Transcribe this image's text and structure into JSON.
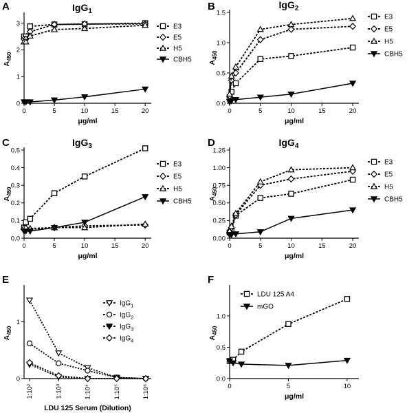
{
  "chart_data": [
    {
      "letter": "A",
      "type": "line",
      "title": "IgG",
      "title_sub": "1",
      "xlabel": "μg/ml",
      "ylabel": "A",
      "ylabel_sub": "450",
      "xlim": [
        0,
        21
      ],
      "xticks": [
        "0",
        "5",
        "10",
        "15",
        "20"
      ],
      "xtick_values": [
        0,
        5,
        10,
        15,
        20
      ],
      "ylim": [
        0,
        3.3
      ],
      "yticks": [
        "0",
        "1",
        "2",
        "3"
      ],
      "ytick_values": [
        0,
        1,
        2,
        3
      ],
      "legend": "top-right",
      "grid": false,
      "x": [
        0,
        0.3,
        1,
        5,
        10,
        20
      ],
      "series": [
        {
          "name": "E3",
          "marker": "square",
          "dashed": true,
          "values": [
            2.5,
            2.5,
            2.88,
            2.95,
            2.96,
            3.0
          ]
        },
        {
          "name": "E5",
          "marker": "diamond",
          "dashed": true,
          "values": [
            2.4,
            2.4,
            2.68,
            2.95,
            2.97,
            2.97
          ]
        },
        {
          "name": "H5",
          "marker": "triangle-up",
          "dashed": true,
          "values": [
            2.3,
            2.3,
            2.52,
            2.76,
            2.8,
            2.92
          ]
        },
        {
          "name": "CBH5",
          "marker": "triangle-down",
          "dashed": false,
          "values": [
            0.05,
            0.05,
            0.05,
            0.12,
            0.24,
            0.53
          ]
        }
      ]
    },
    {
      "letter": "B",
      "type": "line",
      "title": "IgG",
      "title_sub": "2",
      "xlabel": "μg/ml",
      "ylabel": "A",
      "ylabel_sub": "450",
      "xlim": [
        0,
        21
      ],
      "xticks": [
        "0",
        "5",
        "10",
        "15",
        "20"
      ],
      "xtick_values": [
        0,
        5,
        10,
        15,
        20
      ],
      "ylim": [
        0,
        1.5
      ],
      "yticks": [
        "0.0",
        "0.5",
        "1.0",
        "1.5"
      ],
      "ytick_values": [
        0,
        0.5,
        1.0,
        1.5
      ],
      "legend": "top-right",
      "grid": false,
      "x": [
        0,
        0.3,
        1,
        5,
        10,
        20
      ],
      "series": [
        {
          "name": "E3",
          "marker": "square",
          "dashed": true,
          "values": [
            0.1,
            0.19,
            0.33,
            0.73,
            0.78,
            0.92
          ]
        },
        {
          "name": "E5",
          "marker": "diamond",
          "dashed": true,
          "values": [
            0.12,
            0.38,
            0.5,
            1.05,
            1.22,
            1.27
          ]
        },
        {
          "name": "H5",
          "marker": "triangle-up",
          "dashed": true,
          "values": [
            0.15,
            0.45,
            0.6,
            1.22,
            1.3,
            1.4
          ]
        },
        {
          "name": "CBH5",
          "marker": "triangle-down",
          "dashed": false,
          "values": [
            0.02,
            0.04,
            0.06,
            0.1,
            0.15,
            0.33
          ]
        }
      ]
    },
    {
      "letter": "C",
      "type": "line",
      "title": "IgG",
      "title_sub": "3",
      "xlabel": "μg/ml",
      "ylabel": "A",
      "ylabel_sub": "450",
      "xlim": [
        0,
        21
      ],
      "xticks": [
        "0",
        "5",
        "10",
        "15",
        "20"
      ],
      "xtick_values": [
        0,
        5,
        10,
        15,
        20
      ],
      "ylim": [
        0,
        0.5
      ],
      "yticks": [
        "0.0",
        "0.1",
        "0.2",
        "0.3",
        "0.4",
        "0.5"
      ],
      "ytick_values": [
        0,
        0.1,
        0.2,
        0.3,
        0.4,
        0.5
      ],
      "legend": "top-right",
      "grid": false,
      "x": [
        0,
        0.3,
        1,
        5,
        10,
        20
      ],
      "series": [
        {
          "name": "E3",
          "marker": "square",
          "dashed": true,
          "values": [
            0.06,
            0.09,
            0.11,
            0.255,
            0.35,
            0.51
          ]
        },
        {
          "name": "E5",
          "marker": "diamond",
          "dashed": true,
          "values": [
            0.05,
            0.05,
            0.05,
            0.06,
            0.07,
            0.075
          ]
        },
        {
          "name": "H5",
          "marker": "triangle-up",
          "dashed": true,
          "values": [
            0.06,
            0.06,
            0.055,
            0.06,
            0.06,
            0.08
          ]
        },
        {
          "name": "CBH5",
          "marker": "triangle-down",
          "dashed": false,
          "values": [
            0.04,
            0.04,
            0.04,
            0.06,
            0.09,
            0.235
          ]
        }
      ]
    },
    {
      "letter": "D",
      "type": "line",
      "title": "IgG",
      "title_sub": "4",
      "xlabel": "μg/ml",
      "ylabel": "A",
      "ylabel_sub": "450",
      "xlim": [
        0,
        21
      ],
      "xticks": [
        "0",
        "5",
        "10",
        "15",
        "20"
      ],
      "xtick_values": [
        0,
        5,
        10,
        15,
        20
      ],
      "ylim": [
        0,
        1.25
      ],
      "yticks": [
        "0.00",
        "0.25",
        "0.50",
        "0.75",
        "1.00",
        "1.25"
      ],
      "ytick_values": [
        0,
        0.25,
        0.5,
        0.75,
        1.0,
        1.25
      ],
      "legend": "top-right",
      "grid": false,
      "x": [
        0,
        0.3,
        1,
        5,
        10,
        20
      ],
      "series": [
        {
          "name": "E3",
          "marker": "square",
          "dashed": true,
          "values": [
            0.08,
            0.12,
            0.32,
            0.57,
            0.63,
            0.83
          ]
        },
        {
          "name": "E5",
          "marker": "diamond",
          "dashed": true,
          "values": [
            0.1,
            0.15,
            0.33,
            0.75,
            0.84,
            0.95
          ]
        },
        {
          "name": "H5",
          "marker": "triangle-up",
          "dashed": true,
          "values": [
            0.1,
            0.17,
            0.35,
            0.8,
            0.97,
            1.0
          ]
        },
        {
          "name": "CBH5",
          "marker": "triangle-down",
          "dashed": false,
          "values": [
            0.05,
            0.05,
            0.06,
            0.09,
            0.28,
            0.4
          ]
        }
      ]
    },
    {
      "letter": "E",
      "type": "line",
      "title": "",
      "xlabel": "LDU 125 Serum (Dilution)",
      "ylabel": "A",
      "ylabel_sub": "450",
      "categories": [
        "1:10²",
        "1:10³",
        "1:10⁴",
        "1:10⁵",
        "1:10⁶"
      ],
      "ylim": [
        0,
        1.6
      ],
      "yticks": [
        "0",
        "1"
      ],
      "ytick_values": [
        0,
        1
      ],
      "legend": "top-right",
      "grid": false,
      "series": [
        {
          "name": "IgG",
          "name_sub": "1",
          "marker": "triangle-down",
          "filled": false,
          "dashed": true,
          "values": [
            1.38,
            0.45,
            0.19,
            0.02,
            0.0
          ]
        },
        {
          "name": "IgG",
          "name_sub": "2",
          "marker": "circle",
          "filled": false,
          "dashed": true,
          "values": [
            0.62,
            0.27,
            0.14,
            0.02,
            0.0
          ]
        },
        {
          "name": "IgG",
          "name_sub": "3",
          "marker": "triangle-down",
          "filled": true,
          "dashed": true,
          "values": [
            0.25,
            0.03,
            0.0,
            0.0,
            0.0
          ]
        },
        {
          "name": "IgG",
          "name_sub": "4",
          "marker": "diamond",
          "filled": false,
          "dashed": true,
          "values": [
            0.28,
            0.05,
            0.0,
            0.0,
            0.0
          ]
        }
      ]
    },
    {
      "letter": "F",
      "type": "line",
      "title": "",
      "xlabel": "μg/ml",
      "ylabel": "A",
      "ylabel_sub": "450",
      "xlim": [
        0,
        11
      ],
      "xticks": [
        "0",
        "5",
        "10"
      ],
      "xtick_values": [
        0,
        5,
        10
      ],
      "ylim": [
        0,
        1.45
      ],
      "yticks": [
        "0.0",
        "0.5",
        "1.0"
      ],
      "ytick_values": [
        0,
        0.5,
        1.0
      ],
      "legend": "top-left",
      "grid": false,
      "x": [
        0,
        0.3,
        1,
        5,
        10
      ],
      "series": [
        {
          "name": "LDU 125 A4",
          "marker": "square",
          "dashed": true,
          "values": [
            0.28,
            0.3,
            0.43,
            0.87,
            1.27
          ]
        },
        {
          "name": "mGO",
          "marker": "triangle-down",
          "dashed": false,
          "values": [
            0.28,
            0.25,
            0.23,
            0.21,
            0.29
          ]
        }
      ]
    }
  ]
}
